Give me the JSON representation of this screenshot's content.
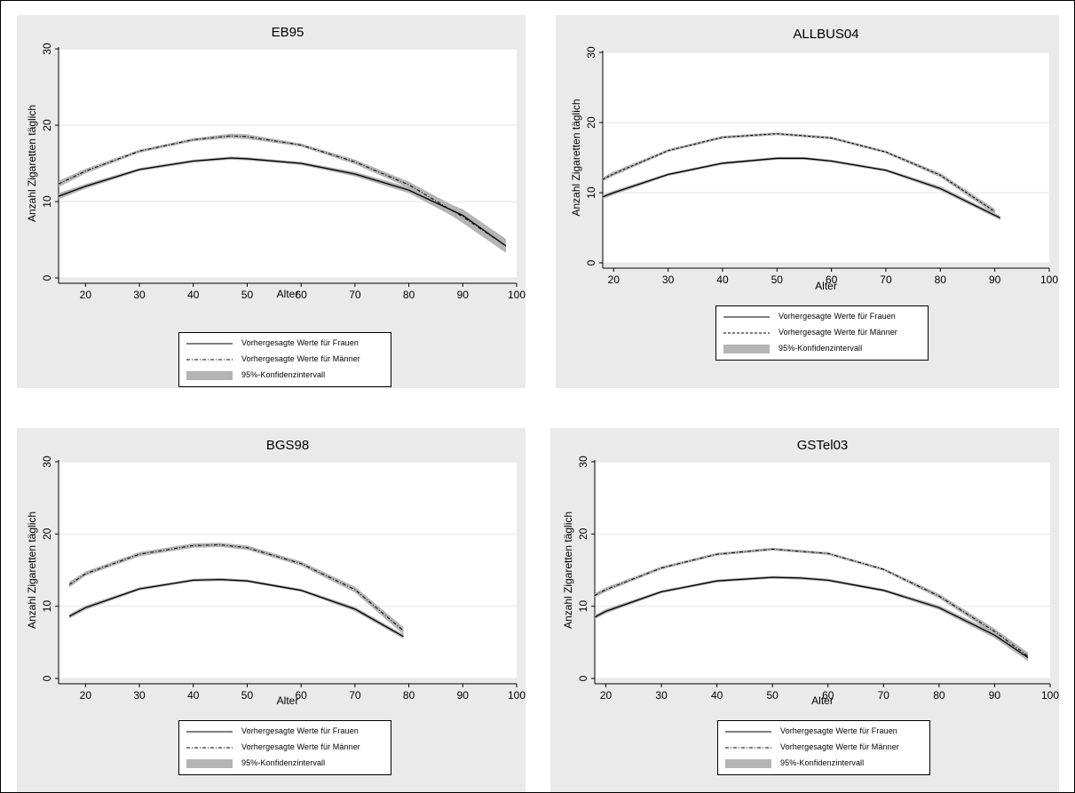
{
  "legend": {
    "women": "Vorhergesagte Werte für Frauen",
    "men": "Vorhergesagte Werte für Männer",
    "ci": "95%-Konfidenzintervall"
  },
  "colors": {
    "panel_bg": "#eaeaea",
    "plot_bg": "#ffffff",
    "ci_band": "#b4b4b4",
    "line": "#000000",
    "grid": "#e6e6e6"
  },
  "chart_data": [
    {
      "type": "line",
      "title": "EB95",
      "xlabel": "Alter",
      "ylabel": "Anzahl Zigaretten täglich",
      "xlim": [
        15,
        100
      ],
      "ylim": [
        0,
        30
      ],
      "xticks": [
        20,
        30,
        40,
        50,
        60,
        70,
        80,
        90,
        100
      ],
      "yticks": [
        0,
        10,
        20,
        30
      ],
      "grid": true,
      "legend_position": "bottom",
      "series": [
        {
          "name": "Vorhergesagte Werte für Frauen",
          "style": "solid",
          "x": [
            15,
            20,
            30,
            40,
            47,
            50,
            60,
            70,
            80,
            90,
            98
          ],
          "y": [
            10.7,
            12.0,
            14.2,
            15.3,
            15.7,
            15.6,
            15.0,
            13.6,
            11.5,
            8.2,
            4.2
          ],
          "ci_halfwidth": [
            0.4,
            0.3,
            0.2,
            0.2,
            0.2,
            0.2,
            0.2,
            0.3,
            0.4,
            0.8,
            0.9
          ]
        },
        {
          "name": "Vorhergesagte Werte für Männer",
          "style": "dashdot",
          "x": [
            15,
            20,
            30,
            40,
            47,
            50,
            60,
            70,
            80,
            90,
            98
          ],
          "y": [
            12.3,
            14.0,
            16.6,
            18.1,
            18.6,
            18.5,
            17.4,
            15.2,
            12.2,
            8.0,
            4.2
          ],
          "ci_halfwidth": [
            0.4,
            0.3,
            0.2,
            0.2,
            0.3,
            0.3,
            0.2,
            0.3,
            0.4,
            0.8,
            0.9
          ]
        }
      ]
    },
    {
      "type": "line",
      "title": "ALLBUS04",
      "xlabel": "Alter",
      "ylabel": "Anzahl Zigaretten täglich",
      "xlim": [
        18,
        100
      ],
      "ylim": [
        0,
        30
      ],
      "xticks": [
        20,
        30,
        40,
        50,
        60,
        70,
        80,
        90,
        100
      ],
      "yticks": [
        0,
        10,
        20,
        30
      ],
      "grid": true,
      "legend_position": "bottom",
      "series": [
        {
          "name": "Vorhergesagte Werte für Frauen",
          "style": "solid",
          "x": [
            18,
            20,
            30,
            40,
            50,
            55,
            60,
            70,
            80,
            91
          ],
          "y": [
            9.4,
            10.0,
            12.6,
            14.2,
            14.9,
            14.9,
            14.5,
            13.2,
            10.6,
            6.4
          ],
          "ci_halfwidth": [
            0.3,
            0.3,
            0.2,
            0.2,
            0.2,
            0.2,
            0.2,
            0.2,
            0.3,
            0.3
          ]
        },
        {
          "name": "Vorhergesagte Werte für Männer",
          "style": "dashed",
          "x": [
            18,
            20,
            30,
            40,
            50,
            60,
            70,
            80,
            90
          ],
          "y": [
            11.9,
            12.7,
            16.0,
            17.9,
            18.4,
            17.8,
            15.8,
            12.5,
            7.3
          ],
          "ci_halfwidth": [
            0.3,
            0.3,
            0.2,
            0.2,
            0.2,
            0.2,
            0.2,
            0.3,
            0.4
          ]
        }
      ]
    },
    {
      "type": "line",
      "title": "BGS98",
      "xlabel": "Alter",
      "ylabel": "Anzahl Zigaretten täglich",
      "xlim": [
        15,
        100
      ],
      "ylim": [
        0,
        30
      ],
      "xticks": [
        20,
        30,
        40,
        50,
        60,
        70,
        80,
        90,
        100
      ],
      "yticks": [
        0,
        10,
        20,
        30
      ],
      "grid": true,
      "legend_position": "bottom",
      "series": [
        {
          "name": "Vorhergesagte Werte für Frauen",
          "style": "solid",
          "x": [
            17,
            20,
            30,
            40,
            45,
            50,
            60,
            70,
            79
          ],
          "y": [
            8.6,
            9.8,
            12.4,
            13.6,
            13.7,
            13.5,
            12.2,
            9.6,
            5.8
          ],
          "ci_halfwidth": [
            0.3,
            0.3,
            0.2,
            0.2,
            0.2,
            0.2,
            0.2,
            0.3,
            0.3
          ]
        },
        {
          "name": "Vorhergesagte Werte für Männer",
          "style": "dashdot",
          "x": [
            17,
            20,
            30,
            40,
            45,
            50,
            60,
            70,
            79
          ],
          "y": [
            13.0,
            14.5,
            17.2,
            18.4,
            18.5,
            18.1,
            15.9,
            12.3,
            6.6
          ],
          "ci_halfwidth": [
            0.4,
            0.3,
            0.3,
            0.3,
            0.3,
            0.3,
            0.3,
            0.4,
            0.5
          ]
        }
      ]
    },
    {
      "type": "line",
      "title": "GSTel03",
      "xlabel": "Alter",
      "ylabel": "Anzahl Zigaretten täglich",
      "xlim": [
        18,
        100
      ],
      "ylim": [
        0,
        30
      ],
      "xticks": [
        20,
        30,
        40,
        50,
        60,
        70,
        80,
        90,
        100
      ],
      "yticks": [
        0,
        10,
        20,
        30
      ],
      "grid": true,
      "legend_position": "bottom",
      "series": [
        {
          "name": "Vorhergesagte Werte für Frauen",
          "style": "solid",
          "x": [
            18,
            20,
            30,
            40,
            50,
            55,
            60,
            70,
            80,
            90,
            96
          ],
          "y": [
            8.5,
            9.3,
            12.0,
            13.5,
            14.0,
            13.9,
            13.6,
            12.2,
            9.8,
            6.0,
            2.9
          ],
          "ci_halfwidth": [
            0.3,
            0.3,
            0.2,
            0.2,
            0.2,
            0.2,
            0.2,
            0.2,
            0.3,
            0.4,
            0.5
          ]
        },
        {
          "name": "Vorhergesagte Werte für Männer",
          "style": "dashdot",
          "x": [
            18,
            20,
            30,
            40,
            50,
            60,
            70,
            80,
            90,
            96
          ],
          "y": [
            11.5,
            12.3,
            15.3,
            17.2,
            17.9,
            17.3,
            15.1,
            11.4,
            6.5,
            3.1
          ],
          "ci_halfwidth": [
            0.3,
            0.3,
            0.2,
            0.2,
            0.2,
            0.2,
            0.2,
            0.3,
            0.4,
            0.5
          ]
        }
      ]
    }
  ]
}
